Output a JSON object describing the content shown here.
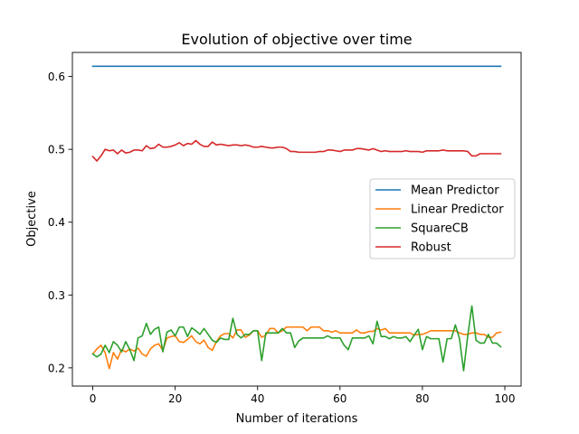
{
  "chart_data": {
    "type": "line",
    "title": "Evolution of objective over time",
    "xlabel": "Number of iterations",
    "ylabel": "Objective",
    "xlim": [
      -4.95,
      103.95
    ],
    "ylim": [
      0.175,
      0.633
    ],
    "xticks": [
      0,
      20,
      40,
      60,
      80,
      100
    ],
    "xtick_labels": [
      "0",
      "20",
      "40",
      "60",
      "80",
      "100"
    ],
    "yticks": [
      0.2,
      0.3,
      0.4,
      0.5,
      0.6
    ],
    "ytick_labels": [
      "0.2",
      "0.3",
      "0.4",
      "0.5",
      "0.6"
    ],
    "grid": false,
    "legend_position": "center-right",
    "x": [
      0,
      1,
      2,
      3,
      4,
      5,
      6,
      7,
      8,
      9,
      10,
      11,
      12,
      13,
      14,
      15,
      16,
      17,
      18,
      19,
      20,
      21,
      22,
      23,
      24,
      25,
      26,
      27,
      28,
      29,
      30,
      31,
      32,
      33,
      34,
      35,
      36,
      37,
      38,
      39,
      40,
      41,
      42,
      43,
      44,
      45,
      46,
      47,
      48,
      49,
      50,
      51,
      52,
      53,
      54,
      55,
      56,
      57,
      58,
      59,
      60,
      61,
      62,
      63,
      64,
      65,
      66,
      67,
      68,
      69,
      70,
      71,
      72,
      73,
      74,
      75,
      76,
      77,
      78,
      79,
      80,
      81,
      82,
      83,
      84,
      85,
      86,
      87,
      88,
      89,
      90,
      91,
      92,
      93,
      94,
      95,
      96,
      97,
      98,
      99
    ],
    "series": [
      {
        "name": "Mean Predictor",
        "color": "#1f77b4",
        "values": [
          0.614,
          0.614,
          0.614,
          0.614,
          0.614,
          0.614,
          0.614,
          0.614,
          0.614,
          0.614,
          0.614,
          0.614,
          0.614,
          0.614,
          0.614,
          0.614,
          0.614,
          0.614,
          0.614,
          0.614,
          0.614,
          0.614,
          0.614,
          0.614,
          0.614,
          0.614,
          0.614,
          0.614,
          0.614,
          0.614,
          0.614,
          0.614,
          0.614,
          0.614,
          0.614,
          0.614,
          0.614,
          0.614,
          0.614,
          0.614,
          0.614,
          0.614,
          0.614,
          0.614,
          0.614,
          0.614,
          0.614,
          0.614,
          0.614,
          0.614,
          0.614,
          0.614,
          0.614,
          0.614,
          0.614,
          0.614,
          0.614,
          0.614,
          0.614,
          0.614,
          0.614,
          0.614,
          0.614,
          0.614,
          0.614,
          0.614,
          0.614,
          0.614,
          0.614,
          0.614,
          0.614,
          0.614,
          0.614,
          0.614,
          0.614,
          0.614,
          0.614,
          0.614,
          0.614,
          0.614,
          0.614,
          0.614,
          0.614,
          0.614,
          0.614,
          0.614,
          0.614,
          0.614,
          0.614,
          0.614,
          0.614,
          0.614,
          0.614,
          0.614,
          0.614,
          0.614,
          0.614,
          0.614,
          0.614,
          0.614
        ]
      },
      {
        "name": "Linear Predictor",
        "color": "#ff7f0e",
        "values": [
          0.219,
          0.226,
          0.231,
          0.221,
          0.199,
          0.221,
          0.212,
          0.225,
          0.222,
          0.226,
          0.223,
          0.227,
          0.219,
          0.216,
          0.226,
          0.231,
          0.233,
          0.224,
          0.241,
          0.243,
          0.244,
          0.236,
          0.235,
          0.239,
          0.244,
          0.236,
          0.233,
          0.238,
          0.228,
          0.224,
          0.236,
          0.244,
          0.247,
          0.247,
          0.241,
          0.252,
          0.252,
          0.242,
          0.245,
          0.251,
          0.251,
          0.242,
          0.245,
          0.254,
          0.254,
          0.248,
          0.251,
          0.256,
          0.256,
          0.256,
          0.256,
          0.256,
          0.251,
          0.256,
          0.256,
          0.256,
          0.251,
          0.251,
          0.249,
          0.251,
          0.248,
          0.248,
          0.248,
          0.248,
          0.252,
          0.248,
          0.248,
          0.25,
          0.25,
          0.254,
          0.252,
          0.254,
          0.248,
          0.248,
          0.248,
          0.248,
          0.248,
          0.248,
          0.245,
          0.246,
          0.246,
          0.248,
          0.251,
          0.251,
          0.251,
          0.251,
          0.251,
          0.251,
          0.251,
          0.248,
          0.246,
          0.246,
          0.248,
          0.248,
          0.246,
          0.246,
          0.242,
          0.242,
          0.248,
          0.249
        ]
      },
      {
        "name": "SquareCB",
        "color": "#2ca02c",
        "values": [
          0.219,
          0.215,
          0.219,
          0.231,
          0.221,
          0.236,
          0.231,
          0.222,
          0.236,
          0.225,
          0.21,
          0.241,
          0.244,
          0.261,
          0.246,
          0.253,
          0.256,
          0.222,
          0.249,
          0.252,
          0.244,
          0.256,
          0.256,
          0.243,
          0.255,
          0.251,
          0.246,
          0.254,
          0.246,
          0.238,
          0.235,
          0.241,
          0.239,
          0.239,
          0.268,
          0.246,
          0.241,
          0.246,
          0.246,
          0.251,
          0.251,
          0.21,
          0.248,
          0.248,
          0.248,
          0.248,
          0.254,
          0.248,
          0.248,
          0.228,
          0.237,
          0.241,
          0.241,
          0.241,
          0.241,
          0.241,
          0.241,
          0.244,
          0.241,
          0.241,
          0.241,
          0.231,
          0.225,
          0.241,
          0.241,
          0.241,
          0.241,
          0.244,
          0.233,
          0.264,
          0.243,
          0.243,
          0.24,
          0.243,
          0.241,
          0.241,
          0.243,
          0.236,
          0.245,
          0.253,
          0.225,
          0.243,
          0.24,
          0.24,
          0.24,
          0.208,
          0.24,
          0.24,
          0.259,
          0.24,
          0.196,
          0.244,
          0.285,
          0.238,
          0.234,
          0.234,
          0.246,
          0.234,
          0.234,
          0.229
        ]
      },
      {
        "name": "Robust",
        "color": "#d62728",
        "values": [
          0.49,
          0.484,
          0.491,
          0.5,
          0.498,
          0.499,
          0.494,
          0.499,
          0.495,
          0.496,
          0.499,
          0.499,
          0.498,
          0.505,
          0.501,
          0.502,
          0.507,
          0.503,
          0.503,
          0.504,
          0.506,
          0.509,
          0.505,
          0.508,
          0.507,
          0.512,
          0.507,
          0.504,
          0.504,
          0.51,
          0.506,
          0.507,
          0.506,
          0.505,
          0.506,
          0.506,
          0.505,
          0.506,
          0.505,
          0.503,
          0.503,
          0.504,
          0.503,
          0.502,
          0.502,
          0.503,
          0.503,
          0.501,
          0.497,
          0.497,
          0.496,
          0.496,
          0.496,
          0.496,
          0.496,
          0.497,
          0.497,
          0.499,
          0.499,
          0.498,
          0.497,
          0.499,
          0.499,
          0.499,
          0.501,
          0.501,
          0.5,
          0.499,
          0.501,
          0.499,
          0.497,
          0.498,
          0.497,
          0.497,
          0.497,
          0.497,
          0.498,
          0.497,
          0.497,
          0.497,
          0.496,
          0.498,
          0.498,
          0.498,
          0.498,
          0.499,
          0.498,
          0.498,
          0.498,
          0.498,
          0.498,
          0.497,
          0.491,
          0.491,
          0.494,
          0.494,
          0.494,
          0.494,
          0.494,
          0.494
        ]
      }
    ]
  }
}
